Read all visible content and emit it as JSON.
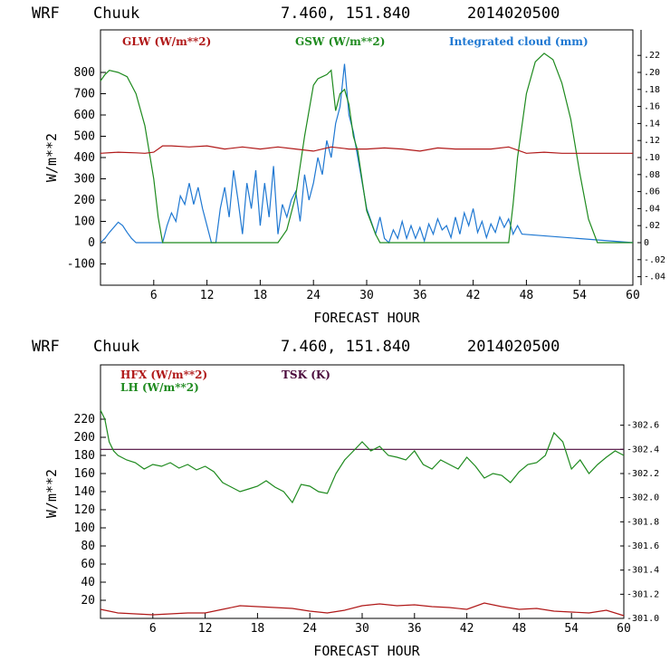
{
  "chart_data": [
    {
      "type": "line",
      "header": {
        "model": "WRF",
        "station": "Chuuk",
        "coords": "7.460, 151.840",
        "date": "2014020500"
      },
      "xlabel": "FORECAST HOUR",
      "ylabel": "W/m**2",
      "xlim": [
        0,
        60
      ],
      "ylim": [
        -200,
        1000
      ],
      "y2lim": [
        -0.05,
        0.25
      ],
      "xticks": [
        "6",
        "12",
        "18",
        "24",
        "30",
        "36",
        "42",
        "48",
        "54",
        "60"
      ],
      "yticks": [
        "-100",
        "0",
        "100",
        "200",
        "300",
        "400",
        "500",
        "600",
        "700",
        "800"
      ],
      "y2ticks": [
        "-.04",
        "-.02",
        "0",
        ".02",
        ".04",
        ".06",
        ".08",
        ".10",
        ".12",
        ".14",
        ".16",
        ".18",
        ".20",
        ".22"
      ],
      "colors": {
        "glw": "#b01818",
        "gsw": "#1e8a1e",
        "cloud": "#1f78d2"
      },
      "series": [
        {
          "name": "GLW (W/m**2)",
          "axis": "left",
          "x": [
            0,
            2,
            4,
            5,
            6,
            7,
            8,
            10,
            12,
            14,
            16,
            18,
            20,
            22,
            24,
            26,
            28,
            30,
            32,
            34,
            36,
            38,
            40,
            42,
            44,
            46,
            48,
            50,
            52,
            54,
            56,
            58,
            60
          ],
          "values": [
            420,
            425,
            422,
            420,
            425,
            455,
            455,
            450,
            455,
            440,
            450,
            440,
            450,
            440,
            430,
            450,
            440,
            440,
            445,
            440,
            430,
            445,
            440,
            440,
            440,
            450,
            420,
            425,
            420,
            420,
            420,
            420,
            420
          ]
        },
        {
          "name": "GSW (W/m**2)",
          "axis": "left",
          "x": [
            0,
            0.5,
            1,
            2,
            3,
            4,
            5,
            6,
            6.5,
            7,
            20,
            21,
            22,
            23,
            24,
            24.5,
            25,
            25.5,
            26,
            26.5,
            27,
            27.5,
            28,
            28.5,
            29,
            30,
            31,
            31.5,
            46,
            46.5,
            47,
            48,
            49,
            50,
            51,
            52,
            53,
            54,
            55,
            56,
            60
          ],
          "values": [
            760,
            790,
            810,
            800,
            780,
            700,
            550,
            300,
            120,
            0,
            0,
            60,
            220,
            500,
            740,
            770,
            780,
            790,
            810,
            620,
            700,
            720,
            650,
            500,
            430,
            150,
            40,
            0,
            0,
            180,
            400,
            700,
            850,
            890,
            860,
            750,
            580,
            330,
            110,
            0,
            0
          ]
        },
        {
          "name": "Integrated cloud (mm)",
          "axis": "right",
          "x": [
            0,
            0.5,
            1,
            1.5,
            2,
            2.5,
            3,
            3.5,
            4,
            7,
            7.5,
            8,
            8.5,
            9,
            9.5,
            10,
            10.5,
            11,
            11.5,
            12,
            12.5,
            13,
            13.5,
            14,
            14.5,
            15,
            15.5,
            16,
            16.5,
            17,
            17.5,
            18,
            18.5,
            19,
            19.5,
            20,
            20.5,
            21,
            21.5,
            22,
            22.5,
            23,
            23.5,
            24,
            24.5,
            25,
            25.5,
            26,
            26.5,
            27,
            27.5,
            28,
            28.5,
            29,
            29.5,
            30,
            30.5,
            31,
            31.5,
            32,
            32.5,
            33,
            33.5,
            34,
            34.5,
            35,
            35.5,
            36,
            36.5,
            37,
            37.5,
            38,
            38.5,
            39,
            39.5,
            40,
            40.5,
            41,
            41.5,
            42,
            42.5,
            43,
            43.5,
            44,
            44.5,
            45,
            45.5,
            46,
            46.5,
            47,
            47.5,
            60
          ],
          "values": [
            0,
            0.005,
            0.012,
            0.018,
            0.024,
            0.02,
            0.012,
            0.005,
            0,
            0,
            0.02,
            0.035,
            0.025,
            0.055,
            0.045,
            0.07,
            0.045,
            0.065,
            0.04,
            0.02,
            0,
            0,
            0.04,
            0.065,
            0.03,
            0.085,
            0.05,
            0.01,
            0.07,
            0.04,
            0.085,
            0.02,
            0.07,
            0.03,
            0.09,
            0.01,
            0.045,
            0.03,
            0.05,
            0.06,
            0.025,
            0.08,
            0.05,
            0.07,
            0.1,
            0.08,
            0.12,
            0.1,
            0.14,
            0.16,
            0.21,
            0.15,
            0.13,
            0.1,
            0.07,
            0.04,
            0.025,
            0.01,
            0.03,
            0.005,
            0,
            0.015,
            0.005,
            0.025,
            0.005,
            0.02,
            0.005,
            0.018,
            0.002,
            0.022,
            0.01,
            0.028,
            0.015,
            0.02,
            0.006,
            0.03,
            0.01,
            0.035,
            0.02,
            0.04,
            0.012,
            0.025,
            0.006,
            0.022,
            0.012,
            0.03,
            0.018,
            0.028,
            0.01,
            0.02,
            0.01,
            0
          ]
        }
      ]
    },
    {
      "type": "line",
      "header": {
        "model": "WRF",
        "station": "Chuuk",
        "coords": "7.460, 151.840",
        "date": "2014020500"
      },
      "xlabel": "FORECAST HOUR",
      "ylabel": "W/m**2",
      "xlim": [
        0,
        60
      ],
      "ylim": [
        0,
        280
      ],
      "y2lim": [
        301.0,
        303.1
      ],
      "xticks": [
        "6",
        "12",
        "18",
        "24",
        "30",
        "36",
        "42",
        "48",
        "54",
        "60"
      ],
      "yticks": [
        "20",
        "40",
        "60",
        "80",
        "100",
        "120",
        "140",
        "160",
        "180",
        "200",
        "220"
      ],
      "y2ticks": [
        "-301.0",
        "-301.2",
        "-301.4",
        "-301.6",
        "-301.8",
        "-302.0",
        "-302.2",
        "-302.4",
        "-302.6"
      ],
      "colors": {
        "hfx": "#b01818",
        "lh": "#1e8a1e",
        "tsk": "#4b0a3c"
      },
      "series": [
        {
          "name": "HFX (W/m**2)",
          "axis": "left",
          "x": [
            0,
            2,
            4,
            6,
            8,
            10,
            12,
            14,
            16,
            18,
            20,
            22,
            24,
            26,
            28,
            30,
            32,
            34,
            36,
            38,
            40,
            42,
            44,
            46,
            48,
            50,
            52,
            54,
            56,
            58,
            60
          ],
          "values": [
            10,
            6,
            5,
            4,
            5,
            6,
            6,
            10,
            14,
            13,
            12,
            11,
            8,
            6,
            9,
            14,
            16,
            14,
            15,
            13,
            12,
            10,
            17,
            13,
            10,
            11,
            8,
            7,
            6,
            9,
            3
          ]
        },
        {
          "name": "LH (W/m**2)",
          "axis": "left",
          "x": [
            0,
            0.5,
            1,
            1.5,
            2,
            3,
            4,
            5,
            6,
            7,
            8,
            9,
            10,
            11,
            12,
            13,
            14,
            15,
            16,
            17,
            18,
            19,
            20,
            21,
            22,
            23,
            24,
            25,
            26,
            27,
            28,
            29,
            30,
            31,
            32,
            33,
            34,
            35,
            36,
            37,
            38,
            39,
            40,
            41,
            42,
            43,
            44,
            45,
            46,
            47,
            48,
            49,
            50,
            51,
            52,
            53,
            54,
            55,
            56,
            57,
            58,
            59,
            60
          ],
          "values": [
            230,
            220,
            195,
            185,
            180,
            175,
            172,
            165,
            170,
            168,
            172,
            166,
            170,
            164,
            168,
            162,
            150,
            145,
            140,
            143,
            146,
            152,
            145,
            140,
            128,
            148,
            146,
            140,
            138,
            160,
            175,
            185,
            195,
            185,
            190,
            180,
            178,
            175,
            185,
            170,
            165,
            175,
            170,
            165,
            178,
            168,
            155,
            160,
            158,
            150,
            162,
            170,
            172,
            180,
            205,
            195,
            165,
            175,
            160,
            170,
            178,
            185,
            180
          ]
        },
        {
          "name": "TSK (K)",
          "axis": "right",
          "x": [
            0,
            60
          ],
          "values": [
            302.4,
            302.4
          ]
        }
      ]
    }
  ]
}
